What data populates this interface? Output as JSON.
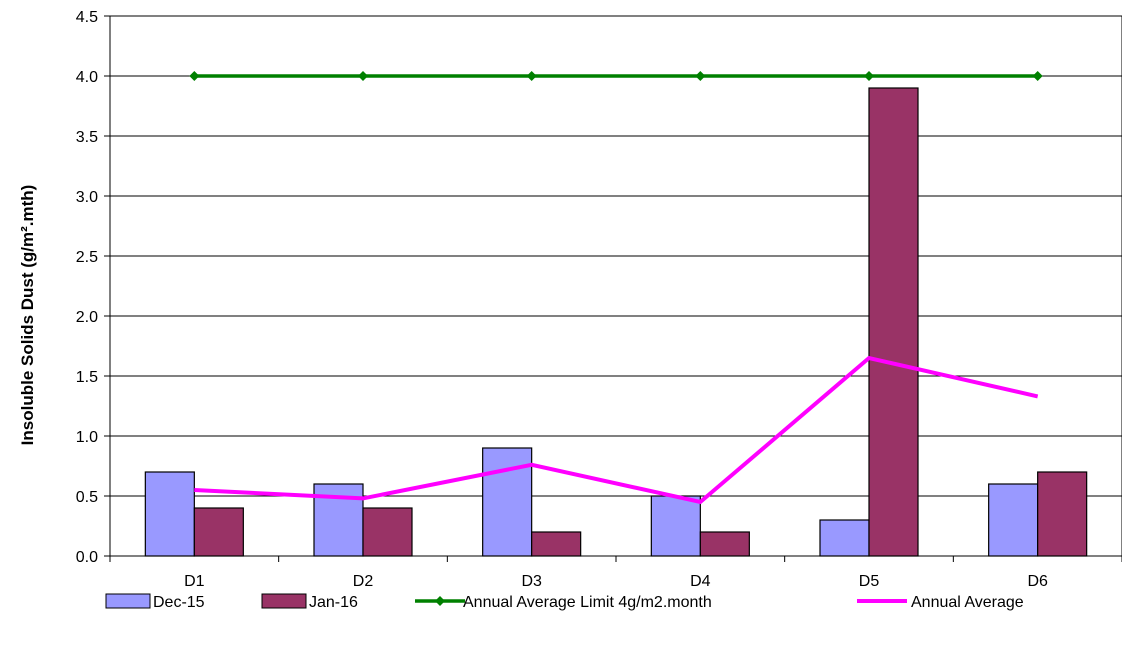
{
  "chart_data": {
    "type": "bar",
    "categories": [
      "D1",
      "D2",
      "D3",
      "D4",
      "D5",
      "D6"
    ],
    "series": [
      {
        "name": "Dec-15",
        "kind": "bar",
        "color": "#9999FF",
        "values": [
          0.7,
          0.6,
          0.9,
          0.5,
          0.3,
          0.6
        ]
      },
      {
        "name": "Jan-16",
        "kind": "bar",
        "color": "#993366",
        "values": [
          0.4,
          0.4,
          0.2,
          0.2,
          3.9,
          0.7
        ]
      },
      {
        "name": "Annual Average Limit 4g/m2.month",
        "kind": "line-marker",
        "color": "#008000",
        "values": [
          4.0,
          4.0,
          4.0,
          4.0,
          4.0,
          4.0
        ]
      },
      {
        "name": "Annual Average",
        "kind": "line",
        "color": "#FF00FF",
        "values": [
          0.55,
          0.48,
          0.76,
          0.45,
          1.65,
          1.33
        ]
      }
    ],
    "ylabel": "Insoluble Solids Dust (g/m².mth)",
    "xlabel": "",
    "title": "",
    "ylim": [
      0,
      4.5
    ],
    "yticks": [
      "0.0",
      "0.5",
      "1.0",
      "1.5",
      "2.0",
      "2.5",
      "3.0",
      "3.5",
      "4.0",
      "4.5"
    ],
    "grid": "horizontal",
    "legend_position": "bottom"
  }
}
